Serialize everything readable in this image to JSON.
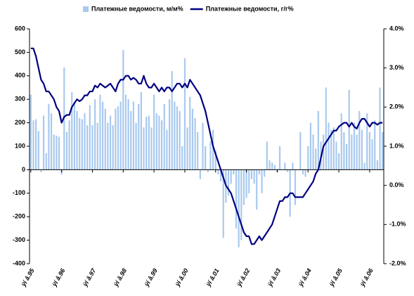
{
  "chart_data": {
    "type": "bar-line",
    "categories": [
      "ÿí â.95",
      null,
      null,
      null,
      null,
      null,
      null,
      null,
      null,
      null,
      null,
      null,
      "ÿí â.96",
      null,
      null,
      null,
      null,
      null,
      null,
      null,
      null,
      null,
      null,
      null,
      "ÿí â.97",
      null,
      null,
      null,
      null,
      null,
      null,
      null,
      null,
      null,
      null,
      null,
      "ÿí â.98",
      null,
      null,
      null,
      null,
      null,
      null,
      null,
      null,
      null,
      null,
      null,
      "ÿí â.99",
      null,
      null,
      null,
      null,
      null,
      null,
      null,
      null,
      null,
      null,
      null,
      "ÿí â.00",
      null,
      null,
      null,
      null,
      null,
      null,
      null,
      null,
      null,
      null,
      null,
      "ÿí â.01",
      null,
      null,
      null,
      null,
      null,
      null,
      null,
      null,
      null,
      null,
      null,
      "ÿí â.02",
      null,
      null,
      null,
      null,
      null,
      null,
      null,
      null,
      null,
      null,
      null,
      "ÿí â.03",
      null,
      null,
      null,
      null,
      null,
      null,
      null,
      null,
      null,
      null,
      null,
      "ÿí â.04",
      null,
      null,
      null,
      null,
      null,
      null,
      null,
      null,
      null,
      null,
      null,
      "ÿí â.05",
      null,
      null,
      null,
      null,
      null,
      null,
      null,
      null,
      null,
      null,
      null,
      "ÿí â.06",
      null,
      null,
      null,
      null,
      null
    ],
    "series": [
      {
        "name": "Платежные ведомости, м/м%",
        "color": "#a9c9ee",
        "kind": "bar",
        "values": [
          320,
          210,
          215,
          165,
          -10,
          230,
          70,
          280,
          240,
          150,
          145,
          140,
          -20,
          435,
          160,
          210,
          330,
          290,
          250,
          220,
          215,
          240,
          190,
          275,
          190,
          300,
          200,
          320,
          290,
          260,
          200,
          230,
          190,
          260,
          270,
          290,
          510,
          320,
          300,
          250,
          290,
          200,
          280,
          330,
          180,
          225,
          230,
          180,
          320,
          240,
          230,
          210,
          280,
          170,
          300,
          420,
          290,
          270,
          250,
          100,
          475,
          180,
          310,
          260,
          220,
          160,
          -40,
          200,
          100,
          -10,
          120,
          170,
          80,
          -20,
          -50,
          -290,
          -140,
          -110,
          -60,
          -20,
          -250,
          -330,
          -300,
          -150,
          -120,
          -100,
          -40,
          -60,
          -170,
          -20,
          -100,
          -30,
          120,
          40,
          30,
          20,
          -10,
          100,
          0,
          30,
          -10,
          -200,
          30,
          -150,
          0,
          160,
          -20,
          -30,
          100,
          200,
          150,
          90,
          250,
          120,
          150,
          350,
          200,
          170,
          180,
          120,
          70,
          240,
          160,
          110,
          340,
          150,
          200,
          150,
          250,
          170,
          30,
          240,
          160,
          130,
          210,
          40,
          350,
          160
        ]
      },
      {
        "name": "Платежные ведомости, г/г%",
        "color": "#000080",
        "kind": "line",
        "axis": "y2",
        "values": [
          3.5,
          3.5,
          3.3,
          3.0,
          2.7,
          2.6,
          2.4,
          2.4,
          2.3,
          2.2,
          2.0,
          1.9,
          1.6,
          1.75,
          1.8,
          1.8,
          2.0,
          2.1,
          2.2,
          2.15,
          2.2,
          2.3,
          2.3,
          2.4,
          2.4,
          2.55,
          2.5,
          2.6,
          2.55,
          2.5,
          2.55,
          2.6,
          2.5,
          2.4,
          2.6,
          2.7,
          2.7,
          2.8,
          2.8,
          2.7,
          2.75,
          2.7,
          2.6,
          2.6,
          2.8,
          2.6,
          2.5,
          2.5,
          2.6,
          2.5,
          2.4,
          2.5,
          2.4,
          2.5,
          2.5,
          2.4,
          2.5,
          2.6,
          2.6,
          2.5,
          2.6,
          2.5,
          2.7,
          2.6,
          2.5,
          2.4,
          2.3,
          2.1,
          1.9,
          1.6,
          1.3,
          1.0,
          0.8,
          0.6,
          0.4,
          0.2,
          0.0,
          -0.1,
          -0.2,
          -0.4,
          -0.6,
          -0.8,
          -1.0,
          -1.2,
          -1.3,
          -1.3,
          -1.5,
          -1.5,
          -1.4,
          -1.3,
          -1.4,
          -1.3,
          -1.2,
          -1.1,
          -1.0,
          -0.8,
          -0.6,
          -0.4,
          -0.4,
          -0.3,
          -0.3,
          -0.2,
          -0.2,
          -0.3,
          -0.3,
          -0.3,
          -0.3,
          -0.2,
          -0.1,
          0.0,
          0.1,
          0.3,
          0.4,
          0.7,
          1.0,
          1.1,
          1.2,
          1.3,
          1.4,
          1.4,
          1.5,
          1.55,
          1.6,
          1.6,
          1.5,
          1.6,
          1.5,
          1.45,
          1.6,
          1.7,
          1.7,
          1.6,
          1.5,
          1.6,
          1.6,
          1.55,
          1.6,
          1.6
        ]
      }
    ],
    "ylim": [
      -400,
      600
    ],
    "yticks": [
      -400,
      -300,
      -200,
      -100,
      0,
      100,
      200,
      300,
      400,
      500,
      600
    ],
    "y2lim": [
      -2,
      4
    ],
    "y2ticks": [
      {
        "value": -2,
        "label": "-2.0%"
      },
      {
        "value": -1,
        "label": "-1.0%"
      },
      {
        "value": 0,
        "label": "0.0%"
      },
      {
        "value": 1,
        "label": "1.0%"
      },
      {
        "value": 2,
        "label": "2.0%"
      },
      {
        "value": 3,
        "label": "3.0%"
      },
      {
        "value": 4,
        "label": "4.0%"
      }
    ],
    "legend": "top",
    "grid": false
  }
}
